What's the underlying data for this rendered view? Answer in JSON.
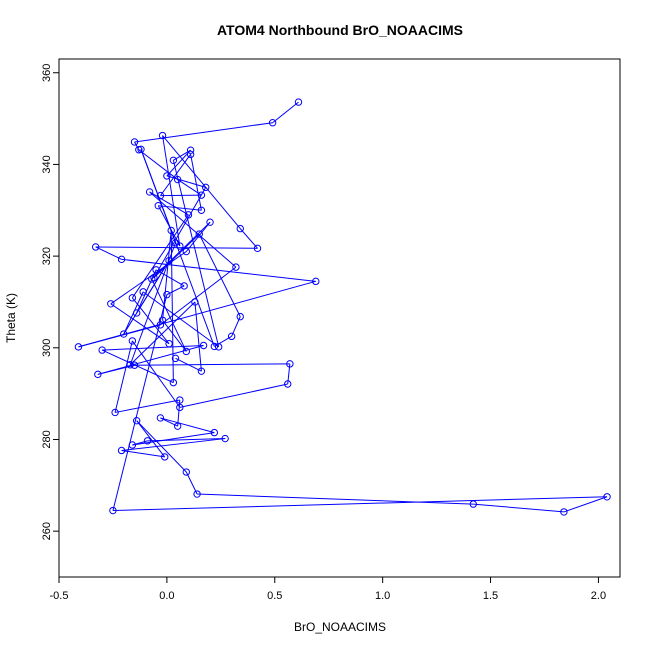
{
  "chart_data": {
    "type": "line",
    "title": "ATOM4 Northbound BrO_NOAACIMS",
    "xlabel": "BrO_NOAACIMS",
    "ylabel": "Theta (K)",
    "xlim": [
      -0.5,
      2.1
    ],
    "ylim": [
      250,
      363
    ],
    "x_ticks": [
      -0.5,
      0.0,
      0.5,
      1.0,
      1.5,
      2.0
    ],
    "x_tick_labels": [
      "-0.5",
      "0.0",
      "0.5",
      "1.0",
      "1.5",
      "2.0"
    ],
    "y_ticks": [
      260,
      280,
      300,
      320,
      340,
      360
    ],
    "y_tick_labels": [
      "260",
      "280",
      "300",
      "320",
      "340",
      "360"
    ],
    "grid": false,
    "series": [
      {
        "color": "#0000ff",
        "marker": "open-circle",
        "x": [
          0.61,
          0.49,
          -0.15,
          -0.13,
          0.05,
          0.16,
          -0.03,
          0.11,
          0.16,
          -0.04,
          0.06,
          -0.02,
          0.34,
          0.42,
          -0.33,
          -0.21,
          0.69,
          -0.41,
          -0.03,
          0.32,
          -0.08,
          0.1,
          -0.16,
          0.01,
          -0.26,
          0.09,
          0.2,
          -0.07,
          0.09,
          -0.02,
          0.02,
          0.03,
          -0.3,
          0.17,
          -0.32,
          -0.15,
          0.57,
          0.56,
          0.06,
          -0.16,
          -0.24,
          0.06,
          0.05,
          -0.03,
          0.22,
          -0.16,
          -0.09,
          0.27,
          -0.21,
          -0.01,
          -0.14,
          0.09,
          0.14,
          1.42,
          1.84,
          2.04,
          -0.25,
          0.0,
          0.08,
          -0.05,
          -0.14,
          0.01,
          -0.2,
          -0.11,
          0.24,
          0.03,
          0.11,
          0.0,
          0.18,
          -0.06,
          0.15,
          0.34,
          0.3,
          0.22,
          -0.12,
          0.04,
          -0.17,
          0.13,
          0.16,
          0.04
        ],
        "y": [
          353.6,
          349.1,
          344.9,
          343.2,
          336.7,
          333.3,
          333.2,
          342.2,
          330.0,
          331.0,
          322.2,
          346.3,
          326.0,
          321.7,
          322.0,
          319.3,
          314.5,
          300.2,
          305.0,
          317.6,
          334.0,
          329.0,
          310.9,
          300.9,
          309.6,
          321.0,
          327.4,
          315.0,
          299.2,
          306.0,
          325.6,
          292.4,
          299.5,
          300.5,
          294.2,
          296.2,
          296.5,
          292.1,
          287.0,
          301.5,
          285.9,
          288.6,
          282.9,
          284.7,
          281.5,
          278.8,
          279.7,
          280.2,
          277.6,
          276.2,
          284.1,
          272.9,
          268.1,
          265.9,
          264.2,
          267.5,
          264.5,
          311.6,
          313.5,
          317.0,
          307.6,
          319.0,
          303.0,
          312.2,
          300.2,
          340.9,
          343.1,
          337.5,
          335.0,
          315.3,
          324.8,
          306.8,
          302.5,
          300.3,
          343.3,
          322.9,
          296.3,
          310.0,
          294.9,
          297.7
        ]
      }
    ]
  }
}
